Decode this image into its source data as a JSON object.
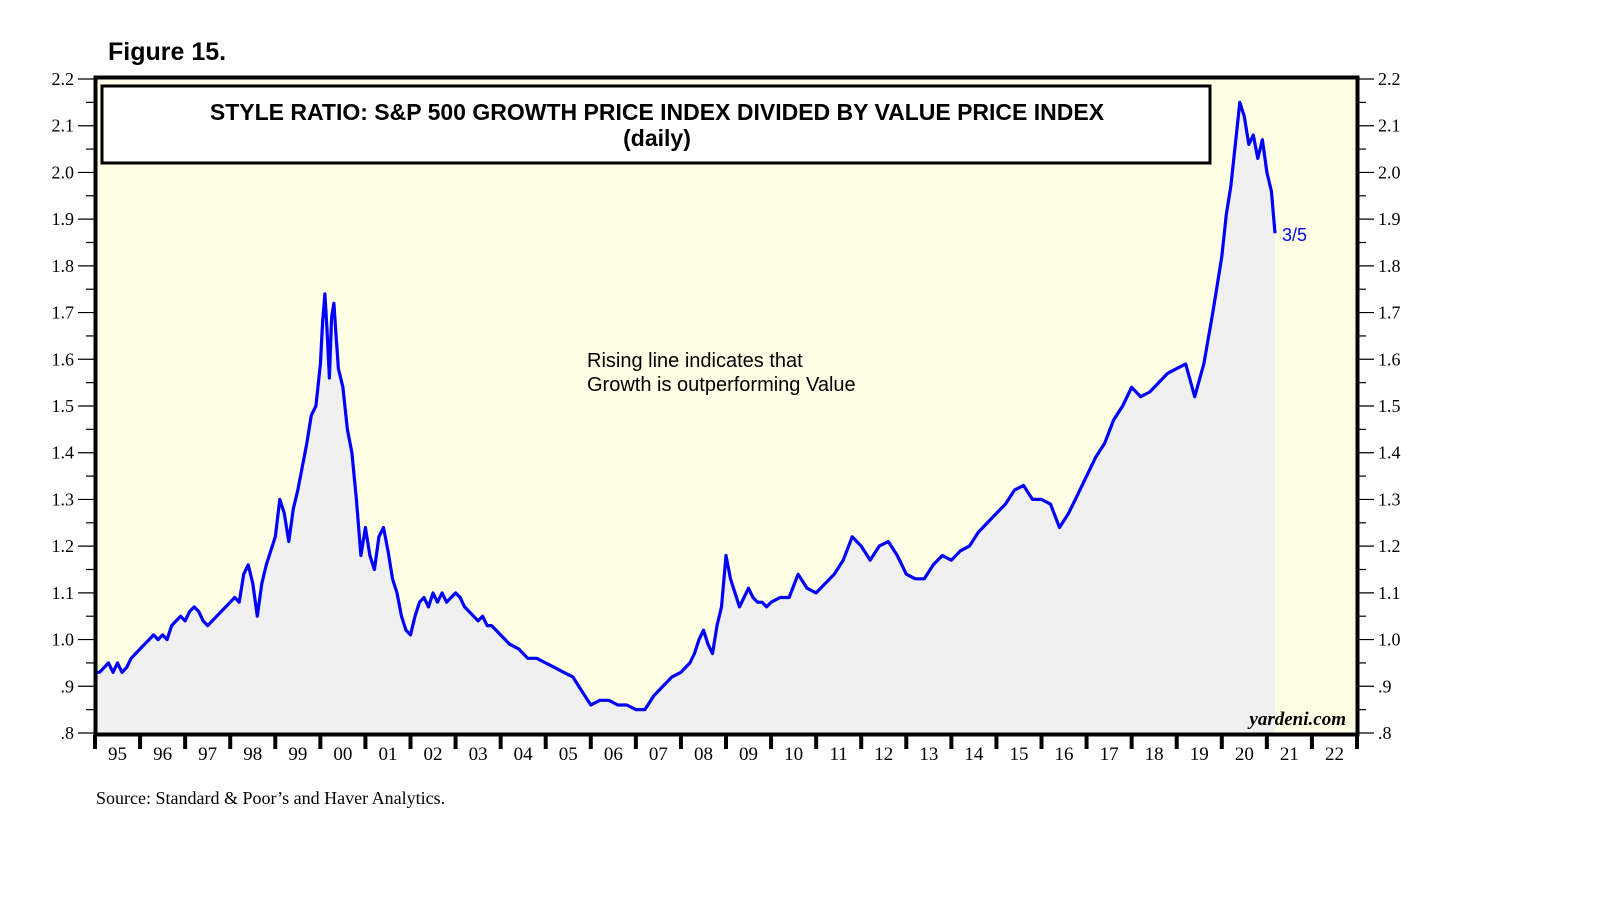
{
  "figure_label": "Figure 15.",
  "source": "Source: Standard & Poor’s and Haver Analytics.",
  "colors": {
    "plot_bg": "#ffffe6",
    "area_fill": "#f0f0f0",
    "line": "#0000ff",
    "frame": "#000000"
  },
  "chart_data": {
    "type": "area",
    "title": "STYLE RATIO: S&P 500 GROWTH PRICE INDEX DIVIDED BY VALUE PRICE INDEX",
    "subtitle": "(daily)",
    "annotation": [
      "Rising line indicates that",
      "Growth is outperforming Value"
    ],
    "end_label": "3/5",
    "watermark": "yardeni.com",
    "xlabel": "",
    "ylabel": "",
    "x_ticks": [
      "95",
      "96",
      "97",
      "98",
      "99",
      "00",
      "01",
      "02",
      "03",
      "04",
      "05",
      "06",
      "07",
      "08",
      "09",
      "10",
      "11",
      "12",
      "13",
      "14",
      "15",
      "16",
      "17",
      "18",
      "19",
      "20",
      "21",
      "22"
    ],
    "x_range": [
      1995,
      2023
    ],
    "y_ticks": [
      ".8",
      ".9",
      "1.0",
      "1.1",
      "1.2",
      "1.3",
      "1.4",
      "1.5",
      "1.6",
      "1.7",
      "1.8",
      "1.9",
      "2.0",
      "2.1",
      "2.2"
    ],
    "y_tick_values": [
      0.8,
      0.9,
      1.0,
      1.1,
      1.2,
      1.3,
      1.4,
      1.5,
      1.6,
      1.7,
      1.8,
      1.9,
      2.0,
      2.1,
      2.2
    ],
    "ylim": [
      0.8,
      2.2
    ],
    "grid": false,
    "series": [
      {
        "name": "Growth/Value ratio",
        "x": [
          1995.0,
          1995.1,
          1995.2,
          1995.3,
          1995.4,
          1995.5,
          1995.6,
          1995.7,
          1995.8,
          1995.9,
          1996.0,
          1996.1,
          1996.2,
          1996.3,
          1996.4,
          1996.5,
          1996.6,
          1996.7,
          1996.8,
          1996.9,
          1997.0,
          1997.1,
          1997.2,
          1997.3,
          1997.4,
          1997.5,
          1997.6,
          1997.7,
          1997.8,
          1997.9,
          1998.0,
          1998.1,
          1998.2,
          1998.3,
          1998.4,
          1998.5,
          1998.6,
          1998.7,
          1998.8,
          1998.9,
          1999.0,
          1999.1,
          1999.2,
          1999.3,
          1999.4,
          1999.5,
          1999.6,
          1999.7,
          1999.8,
          1999.9,
          2000.0,
          2000.05,
          2000.1,
          2000.15,
          2000.2,
          2000.25,
          2000.3,
          2000.35,
          2000.4,
          2000.5,
          2000.6,
          2000.7,
          2000.8,
          2000.9,
          2001.0,
          2001.1,
          2001.2,
          2001.3,
          2001.4,
          2001.5,
          2001.6,
          2001.7,
          2001.8,
          2001.9,
          2002.0,
          2002.1,
          2002.2,
          2002.3,
          2002.4,
          2002.5,
          2002.6,
          2002.7,
          2002.8,
          2002.9,
          2003.0,
          2003.1,
          2003.2,
          2003.3,
          2003.4,
          2003.5,
          2003.6,
          2003.7,
          2003.8,
          2003.9,
          2004.0,
          2004.2,
          2004.4,
          2004.6,
          2004.8,
          2005.0,
          2005.2,
          2005.4,
          2005.6,
          2005.8,
          2006.0,
          2006.2,
          2006.4,
          2006.6,
          2006.8,
          2007.0,
          2007.2,
          2007.4,
          2007.6,
          2007.8,
          2008.0,
          2008.1,
          2008.2,
          2008.3,
          2008.4,
          2008.5,
          2008.6,
          2008.7,
          2008.8,
          2008.9,
          2009.0,
          2009.1,
          2009.2,
          2009.3,
          2009.4,
          2009.5,
          2009.6,
          2009.7,
          2009.8,
          2009.9,
          2010.0,
          2010.2,
          2010.4,
          2010.6,
          2010.8,
          2011.0,
          2011.2,
          2011.4,
          2011.6,
          2011.8,
          2012.0,
          2012.2,
          2012.4,
          2012.6,
          2012.8,
          2013.0,
          2013.2,
          2013.4,
          2013.6,
          2013.8,
          2014.0,
          2014.2,
          2014.4,
          2014.6,
          2014.8,
          2015.0,
          2015.2,
          2015.4,
          2015.6,
          2015.8,
          2016.0,
          2016.2,
          2016.4,
          2016.6,
          2016.8,
          2017.0,
          2017.2,
          2017.4,
          2017.6,
          2017.8,
          2018.0,
          2018.2,
          2018.4,
          2018.6,
          2018.8,
          2019.0,
          2019.2,
          2019.4,
          2019.6,
          2019.8,
          2020.0,
          2020.1,
          2020.2,
          2020.3,
          2020.4,
          2020.5,
          2020.6,
          2020.7,
          2020.8,
          2020.9,
          2021.0,
          2021.1,
          2021.18
        ],
        "values": [
          0.93,
          0.93,
          0.94,
          0.95,
          0.93,
          0.95,
          0.93,
          0.94,
          0.96,
          0.97,
          0.98,
          0.99,
          1.0,
          1.01,
          1.0,
          1.01,
          1.0,
          1.03,
          1.04,
          1.05,
          1.04,
          1.06,
          1.07,
          1.06,
          1.04,
          1.03,
          1.04,
          1.05,
          1.06,
          1.07,
          1.08,
          1.09,
          1.08,
          1.14,
          1.16,
          1.12,
          1.05,
          1.12,
          1.16,
          1.19,
          1.22,
          1.3,
          1.27,
          1.21,
          1.28,
          1.32,
          1.37,
          1.42,
          1.48,
          1.5,
          1.59,
          1.68,
          1.74,
          1.66,
          1.56,
          1.69,
          1.72,
          1.65,
          1.58,
          1.54,
          1.45,
          1.4,
          1.3,
          1.18,
          1.24,
          1.18,
          1.15,
          1.22,
          1.24,
          1.19,
          1.13,
          1.1,
          1.05,
          1.02,
          1.01,
          1.05,
          1.08,
          1.09,
          1.07,
          1.1,
          1.08,
          1.1,
          1.08,
          1.09,
          1.1,
          1.09,
          1.07,
          1.06,
          1.05,
          1.04,
          1.05,
          1.03,
          1.03,
          1.02,
          1.01,
          0.99,
          0.98,
          0.96,
          0.96,
          0.95,
          0.94,
          0.93,
          0.92,
          0.89,
          0.86,
          0.87,
          0.87,
          0.86,
          0.86,
          0.85,
          0.85,
          0.88,
          0.9,
          0.92,
          0.93,
          0.94,
          0.95,
          0.97,
          1.0,
          1.02,
          0.99,
          0.97,
          1.03,
          1.07,
          1.18,
          1.13,
          1.1,
          1.07,
          1.09,
          1.11,
          1.09,
          1.08,
          1.08,
          1.07,
          1.08,
          1.09,
          1.09,
          1.14,
          1.11,
          1.1,
          1.12,
          1.14,
          1.17,
          1.22,
          1.2,
          1.17,
          1.2,
          1.21,
          1.18,
          1.14,
          1.13,
          1.13,
          1.16,
          1.18,
          1.17,
          1.19,
          1.2,
          1.23,
          1.25,
          1.27,
          1.29,
          1.32,
          1.33,
          1.3,
          1.3,
          1.29,
          1.24,
          1.27,
          1.31,
          1.35,
          1.39,
          1.42,
          1.47,
          1.5,
          1.54,
          1.52,
          1.53,
          1.55,
          1.57,
          1.58,
          1.59,
          1.52,
          1.59,
          1.7,
          1.82,
          1.91,
          1.97,
          2.06,
          2.15,
          2.12,
          2.06,
          2.08,
          2.03,
          2.07,
          2.0,
          1.96,
          1.87
        ]
      }
    ]
  }
}
